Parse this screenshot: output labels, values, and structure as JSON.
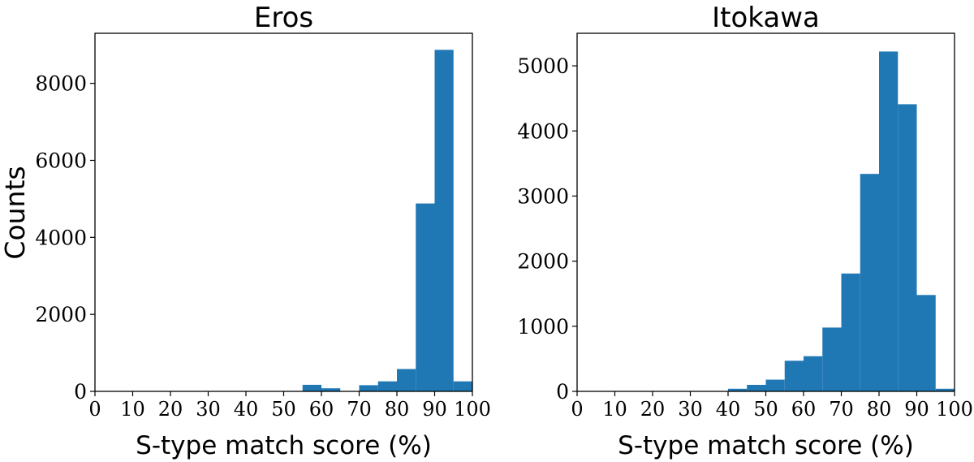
{
  "figure": {
    "ylabel": "Counts"
  },
  "chart_data": [
    {
      "type": "bar",
      "title": "Eros",
      "xlabel": "S-type match score (%)",
      "ylabel": "Counts",
      "xlim": [
        0,
        100
      ],
      "ylim": [
        0,
        9300
      ],
      "xticks": [
        0,
        10,
        20,
        30,
        40,
        50,
        60,
        70,
        80,
        90,
        100
      ],
      "yticks": [
        0,
        2000,
        4000,
        6000,
        8000
      ],
      "bin_edges": [
        0,
        5,
        10,
        15,
        20,
        25,
        30,
        35,
        40,
        45,
        50,
        55,
        60,
        65,
        70,
        75,
        80,
        85,
        90,
        95,
        100
      ],
      "values": [
        0,
        0,
        0,
        0,
        0,
        0,
        0,
        0,
        0,
        0,
        0,
        170,
        80,
        0,
        160,
        260,
        580,
        4880,
        8870,
        260
      ],
      "color": "#1f77b4",
      "grid": false
    },
    {
      "type": "bar",
      "title": "Itokawa",
      "xlabel": "S-type match score (%)",
      "ylabel": "",
      "xlim": [
        0,
        100
      ],
      "ylim": [
        0,
        5500
      ],
      "xticks": [
        0,
        10,
        20,
        30,
        40,
        50,
        60,
        70,
        80,
        90,
        100
      ],
      "yticks": [
        0,
        1000,
        2000,
        3000,
        4000,
        5000
      ],
      "bin_edges": [
        0,
        5,
        10,
        15,
        20,
        25,
        30,
        35,
        40,
        45,
        50,
        55,
        60,
        65,
        70,
        75,
        80,
        85,
        90,
        95,
        100
      ],
      "values": [
        0,
        0,
        0,
        0,
        0,
        0,
        0,
        0,
        40,
        100,
        180,
        470,
        540,
        980,
        1810,
        3340,
        5220,
        4410,
        1480,
        40
      ],
      "color": "#1f77b4",
      "grid": false
    }
  ]
}
